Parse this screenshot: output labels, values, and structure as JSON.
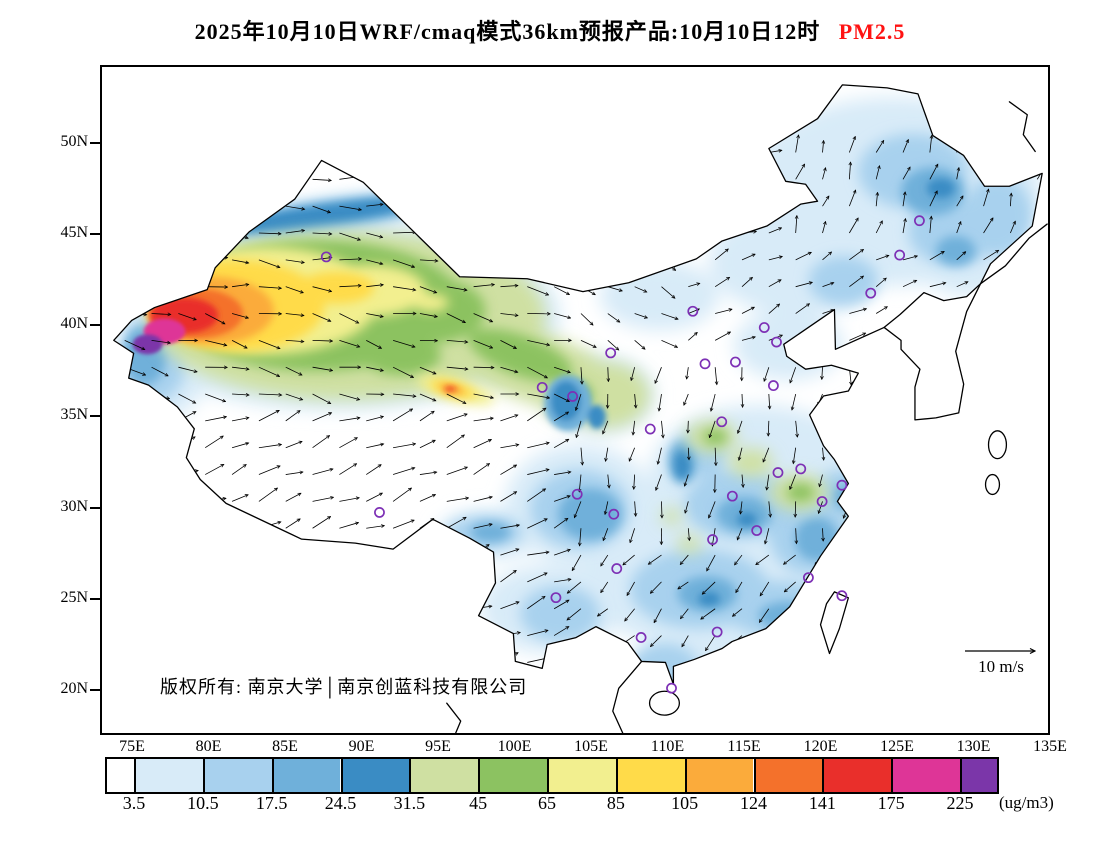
{
  "title": {
    "main": "2025年10月10日WRF/cmaq模式36km预报产品:10月10日12时",
    "pollutant": "PM2.5",
    "pollutant_color": "#ff1212"
  },
  "axes": {
    "y_labels": [
      "50N",
      "45N",
      "40N",
      "35N",
      "30N",
      "25N",
      "20N"
    ],
    "x_labels": [
      "75E",
      "80E",
      "85E",
      "90E",
      "95E",
      "100E",
      "105E",
      "110E",
      "115E",
      "120E",
      "125E",
      "130E",
      "135E"
    ]
  },
  "map": {
    "copyright": "版权所有: 南京大学│南京创蓝科技有限公司",
    "wind_ref_label": "10 m/s"
  },
  "colorbar": {
    "labels": [
      "3.5",
      "10.5",
      "17.5",
      "24.5",
      "31.5",
      "45",
      "65",
      "85",
      "105",
      "124",
      "141",
      "175",
      "225"
    ],
    "unit": "(ug/m3)",
    "colors": [
      "#ffffff",
      "#d8ebf8",
      "#a8d1ee",
      "#6fb0da",
      "#3a8cc4",
      "#cfe0a2",
      "#8cc261",
      "#f2ef8f",
      "#ffdb49",
      "#fbab3b",
      "#f4712b",
      "#e92f2b",
      "#de3597",
      "#7b36a9"
    ]
  },
  "markers": {
    "color": "#7d30b5",
    "cities": [
      [
        87.6,
        43.8
      ],
      [
        126.6,
        45.8
      ],
      [
        125.3,
        43.9
      ],
      [
        123.4,
        41.8
      ],
      [
        111.7,
        40.8
      ],
      [
        116.4,
        39.9
      ],
      [
        117.2,
        39.1
      ],
      [
        114.5,
        38.0
      ],
      [
        112.5,
        37.9
      ],
      [
        117.0,
        36.7
      ],
      [
        113.6,
        34.7
      ],
      [
        108.9,
        34.3
      ],
      [
        106.3,
        38.5
      ],
      [
        103.8,
        36.1
      ],
      [
        101.8,
        36.6
      ],
      [
        104.1,
        30.7
      ],
      [
        106.5,
        29.6
      ],
      [
        114.3,
        30.6
      ],
      [
        117.3,
        31.9
      ],
      [
        118.8,
        32.1
      ],
      [
        121.5,
        31.2
      ],
      [
        120.2,
        30.3
      ],
      [
        115.9,
        28.7
      ],
      [
        113.0,
        28.2
      ],
      [
        106.7,
        26.6
      ],
      [
        102.7,
        25.0
      ],
      [
        119.3,
        26.1
      ],
      [
        113.3,
        23.1
      ],
      [
        108.3,
        22.8
      ],
      [
        110.3,
        20.0
      ],
      [
        91.1,
        29.7
      ],
      [
        121.5,
        25.1
      ]
    ]
  }
}
